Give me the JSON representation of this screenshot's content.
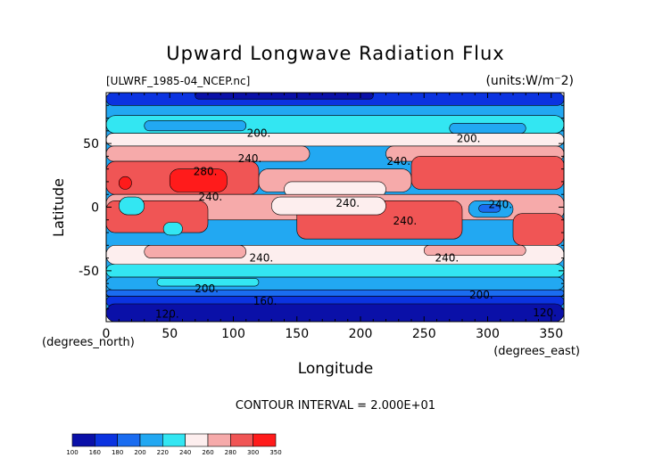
{
  "chart_data": {
    "type": "heatmap",
    "title": "Upward Longwave Radiation Flux",
    "source_label": "[ULWRF_1985-04_NCEP.nc]",
    "units_label": "(units:W/m⁻2)",
    "xlabel": "Longitude",
    "ylabel": "Latitude",
    "xunit_label": "(degrees_east)",
    "yunit_label": "(degrees_north)",
    "xlim": [
      0,
      360
    ],
    "ylim": [
      -90,
      90
    ],
    "xticks": [
      0,
      50,
      100,
      150,
      200,
      250,
      300,
      350
    ],
    "yticks": [
      -50,
      0,
      50
    ],
    "contour_interval_text": "CONTOUR INTERVAL = 2.000E+01",
    "colorbar": {
      "levels": [
        "100",
        "160",
        "180",
        "200",
        "220",
        "240",
        "260",
        "280",
        "300",
        "350"
      ],
      "colors": [
        "#0a10a8",
        "#0b33e0",
        "#1a6cf0",
        "#22a8f2",
        "#33e6f2",
        "#fdeeee",
        "#f6aaaa",
        "#f05555",
        "#ff1b1b"
      ]
    },
    "contour_labels": [
      {
        "text": "200.",
        "x": 120,
        "y": 58
      },
      {
        "text": "240.",
        "x": 113,
        "y": 38
      },
      {
        "text": "280.",
        "x": 78,
        "y": 28
      },
      {
        "text": "240.",
        "x": 82,
        "y": 8
      },
      {
        "text": "200.",
        "x": 285,
        "y": 54
      },
      {
        "text": "240.",
        "x": 230,
        "y": 36
      },
      {
        "text": "240.",
        "x": 190,
        "y": 3
      },
      {
        "text": "240.",
        "x": 235,
        "y": -11
      },
      {
        "text": "240.",
        "x": 310,
        "y": 2
      },
      {
        "text": "240.",
        "x": 122,
        "y": -40
      },
      {
        "text": "240.",
        "x": 268,
        "y": -40
      },
      {
        "text": "200.",
        "x": 79,
        "y": -64
      },
      {
        "text": "200.",
        "x": 295,
        "y": -69
      },
      {
        "text": "160.",
        "x": 125,
        "y": -74
      },
      {
        "text": "120.",
        "x": 48,
        "y": -84
      },
      {
        "text": "120.",
        "x": 345,
        "y": -83
      }
    ],
    "regions": [
      {
        "level": 3,
        "lat": [
          90,
          -90
        ],
        "lon": [
          0,
          360
        ]
      },
      {
        "level": 1,
        "lat": [
          90,
          80
        ],
        "lon": [
          0,
          360
        ]
      },
      {
        "level": 0,
        "lat": [
          90,
          85
        ],
        "lon": [
          70,
          210
        ]
      },
      {
        "level": 4,
        "lat": [
          72,
          58
        ],
        "lon": [
          0,
          360
        ]
      },
      {
        "level": 3,
        "lat": [
          68,
          60
        ],
        "lon": [
          30,
          110
        ]
      },
      {
        "level": 3,
        "lat": [
          66,
          58
        ],
        "lon": [
          270,
          330
        ]
      },
      {
        "level": 5,
        "lat": [
          58,
          48
        ],
        "lon": [
          0,
          360
        ]
      },
      {
        "level": 6,
        "lat": [
          48,
          36
        ],
        "lon": [
          0,
          160
        ]
      },
      {
        "level": 6,
        "lat": [
          48,
          36
        ],
        "lon": [
          220,
          360
        ]
      },
      {
        "level": 7,
        "lat": [
          36,
          10
        ],
        "lon": [
          0,
          120
        ]
      },
      {
        "level": 8,
        "lat": [
          30,
          12
        ],
        "lon": [
          50,
          95
        ]
      },
      {
        "level": 8,
        "lat": [
          24,
          14
        ],
        "lon": [
          10,
          20
        ]
      },
      {
        "level": 7,
        "lat": [
          40,
          14
        ],
        "lon": [
          240,
          360
        ]
      },
      {
        "level": 6,
        "lat": [
          30,
          12
        ],
        "lon": [
          120,
          240
        ]
      },
      {
        "level": 5,
        "lat": [
          20,
          8
        ],
        "lon": [
          140,
          220
        ]
      },
      {
        "level": 6,
        "lat": [
          10,
          -10
        ],
        "lon": [
          0,
          360
        ]
      },
      {
        "level": 7,
        "lat": [
          5,
          -20
        ],
        "lon": [
          0,
          80
        ]
      },
      {
        "level": 7,
        "lat": [
          5,
          -25
        ],
        "lon": [
          150,
          280
        ]
      },
      {
        "level": 7,
        "lat": [
          -5,
          -30
        ],
        "lon": [
          320,
          360
        ]
      },
      {
        "level": 5,
        "lat": [
          8,
          -6
        ],
        "lon": [
          130,
          220
        ]
      },
      {
        "level": 4,
        "lat": [
          8,
          -6
        ],
        "lon": [
          10,
          30
        ]
      },
      {
        "level": 4,
        "lat": [
          -12,
          -22
        ],
        "lon": [
          45,
          60
        ]
      },
      {
        "level": 3,
        "lat": [
          5,
          -8
        ],
        "lon": [
          285,
          320
        ]
      },
      {
        "level": 2,
        "lat": [
          2,
          -4
        ],
        "lon": [
          293,
          310
        ]
      },
      {
        "level": 5,
        "lat": [
          -30,
          -45
        ],
        "lon": [
          0,
          360
        ]
      },
      {
        "level": 6,
        "lat": [
          -30,
          -40
        ],
        "lon": [
          30,
          110
        ]
      },
      {
        "level": 6,
        "lat": [
          -30,
          -38
        ],
        "lon": [
          250,
          330
        ]
      },
      {
        "level": 4,
        "lat": [
          -45,
          -55
        ],
        "lon": [
          0,
          360
        ]
      },
      {
        "level": 3,
        "lat": [
          -55,
          -65
        ],
        "lon": [
          0,
          360
        ]
      },
      {
        "level": 4,
        "lat": [
          -56,
          -62
        ],
        "lon": [
          40,
          120
        ]
      },
      {
        "level": 2,
        "lat": [
          -65,
          -70
        ],
        "lon": [
          0,
          360
        ]
      },
      {
        "level": 1,
        "lat": [
          -70,
          -78
        ],
        "lon": [
          0,
          360
        ]
      },
      {
        "level": 0,
        "lat": [
          -76,
          -90
        ],
        "lon": [
          0,
          360
        ]
      }
    ]
  }
}
